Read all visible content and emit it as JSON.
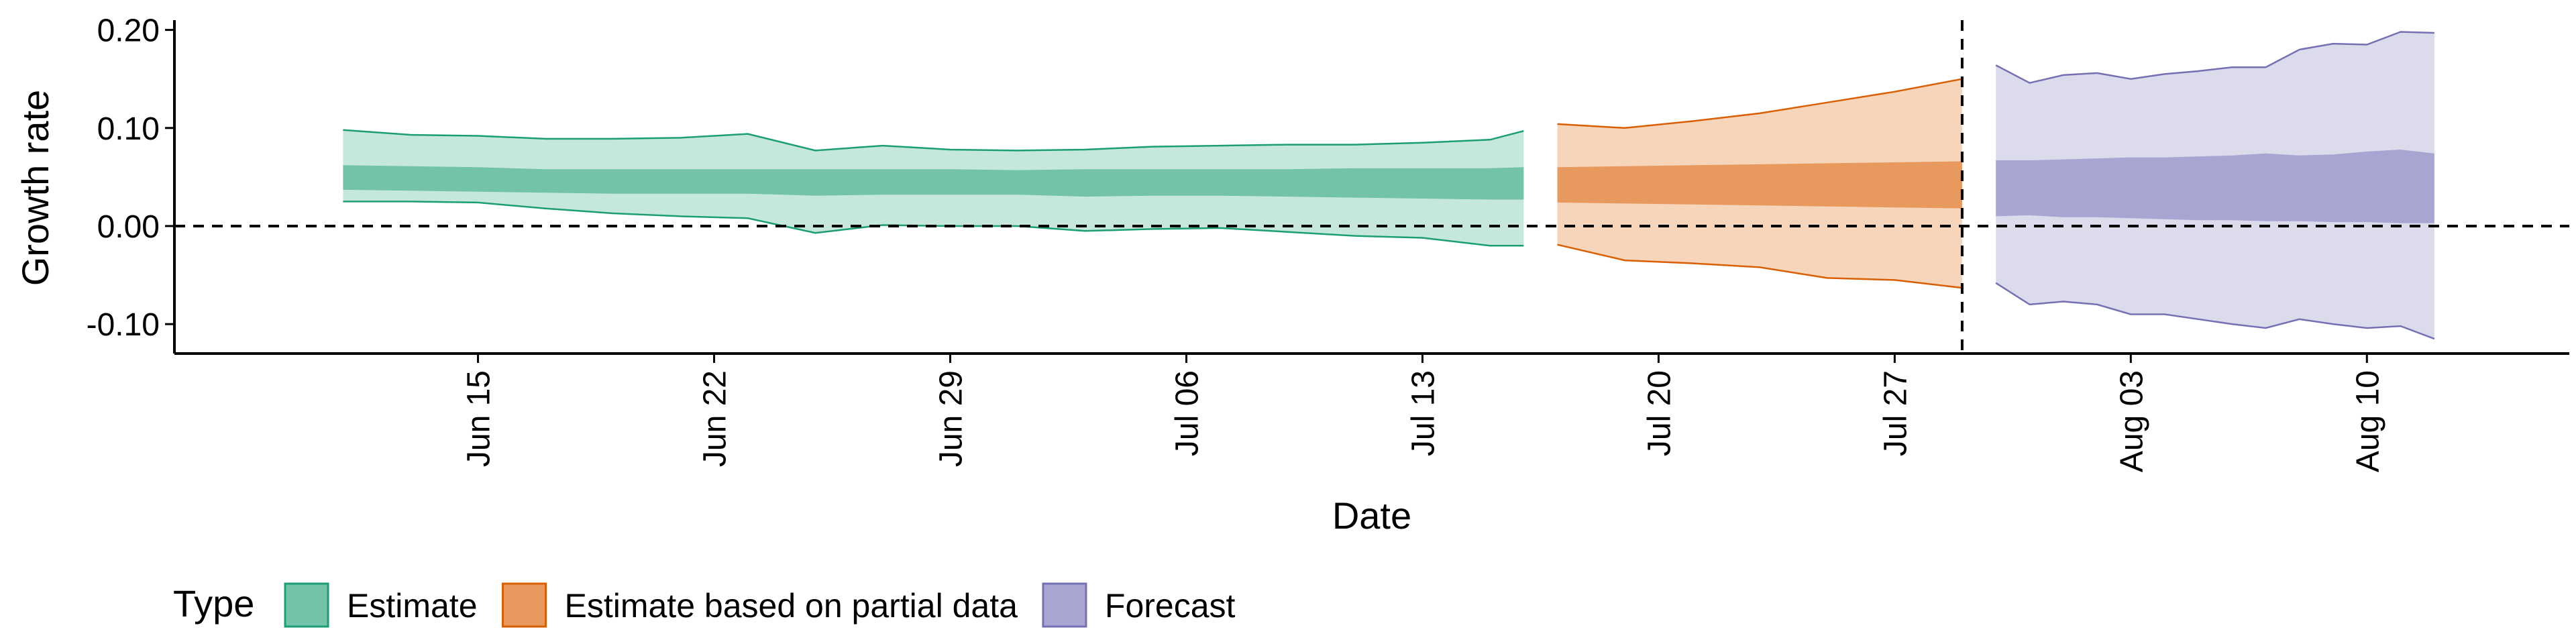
{
  "chart_data": {
    "type": "area",
    "xlabel": "Date",
    "ylabel": "Growth rate",
    "x_axis": {
      "type": "date",
      "range": [
        "2020-06-06",
        "2020-08-16"
      ],
      "ticks": [
        {
          "date": "2020-06-15",
          "label": "Jun 15"
        },
        {
          "date": "2020-06-22",
          "label": "Jun 22"
        },
        {
          "date": "2020-06-29",
          "label": "Jun 29"
        },
        {
          "date": "2020-07-06",
          "label": "Jul 06"
        },
        {
          "date": "2020-07-13",
          "label": "Jul 13"
        },
        {
          "date": "2020-07-20",
          "label": "Jul 20"
        },
        {
          "date": "2020-07-27",
          "label": "Jul 27"
        },
        {
          "date": "2020-08-03",
          "label": "Aug 03"
        },
        {
          "date": "2020-08-10",
          "label": "Aug 10"
        }
      ]
    },
    "y_axis": {
      "range": [
        -0.13,
        0.21
      ],
      "ticks": [
        {
          "value": 0.2,
          "label": "0.20"
        },
        {
          "value": 0.1,
          "label": "0.10"
        },
        {
          "value": 0.0,
          "label": "0.00"
        },
        {
          "value": -0.1,
          "label": "-0.10"
        }
      ]
    },
    "reference_lines": {
      "horizontal_y": 0.0,
      "vertical_date": "2020-07-29"
    },
    "legend": {
      "title": "Type",
      "position": "bottom",
      "entries": [
        {
          "label": "Estimate",
          "fill": "#72c3a8",
          "stroke": "#1b9e77"
        },
        {
          "label": "Estimate based on partial data",
          "fill": "#e89a5e",
          "stroke": "#d95f02"
        },
        {
          "label": "Forecast",
          "fill": "#a9a5d2",
          "stroke": "#7570b3"
        }
      ]
    },
    "series": [
      {
        "name": "Estimate",
        "outer_fill": "#c6e8dc",
        "inner_fill": "#72c3a8",
        "stroke": "#1b9e77",
        "points": [
          {
            "x": "2020-06-11",
            "lower_90": 0.025,
            "lower_50": 0.037,
            "upper_50": 0.062,
            "upper_90": 0.098
          },
          {
            "x": "2020-06-13",
            "lower_90": 0.025,
            "lower_50": 0.036,
            "upper_50": 0.061,
            "upper_90": 0.093
          },
          {
            "x": "2020-06-15",
            "lower_90": 0.024,
            "lower_50": 0.035,
            "upper_50": 0.06,
            "upper_90": 0.092
          },
          {
            "x": "2020-06-17",
            "lower_90": 0.018,
            "lower_50": 0.034,
            "upper_50": 0.058,
            "upper_90": 0.089
          },
          {
            "x": "2020-06-19",
            "lower_90": 0.013,
            "lower_50": 0.033,
            "upper_50": 0.058,
            "upper_90": 0.089
          },
          {
            "x": "2020-06-21",
            "lower_90": 0.01,
            "lower_50": 0.033,
            "upper_50": 0.058,
            "upper_90": 0.09
          },
          {
            "x": "2020-06-23",
            "lower_90": 0.008,
            "lower_50": 0.033,
            "upper_50": 0.058,
            "upper_90": 0.094
          },
          {
            "x": "2020-06-25",
            "lower_90": -0.007,
            "lower_50": 0.031,
            "upper_50": 0.058,
            "upper_90": 0.077
          },
          {
            "x": "2020-06-27",
            "lower_90": 0.001,
            "lower_50": 0.032,
            "upper_50": 0.058,
            "upper_90": 0.082
          },
          {
            "x": "2020-06-29",
            "lower_90": 0.0,
            "lower_50": 0.032,
            "upper_50": 0.058,
            "upper_90": 0.078
          },
          {
            "x": "2020-07-01",
            "lower_90": 0.0,
            "lower_50": 0.032,
            "upper_50": 0.057,
            "upper_90": 0.077
          },
          {
            "x": "2020-07-03",
            "lower_90": -0.005,
            "lower_50": 0.03,
            "upper_50": 0.058,
            "upper_90": 0.078
          },
          {
            "x": "2020-07-05",
            "lower_90": -0.003,
            "lower_50": 0.031,
            "upper_50": 0.058,
            "upper_90": 0.081
          },
          {
            "x": "2020-07-07",
            "lower_90": -0.002,
            "lower_50": 0.031,
            "upper_50": 0.058,
            "upper_90": 0.082
          },
          {
            "x": "2020-07-09",
            "lower_90": -0.006,
            "lower_50": 0.03,
            "upper_50": 0.058,
            "upper_90": 0.083
          },
          {
            "x": "2020-07-11",
            "lower_90": -0.01,
            "lower_50": 0.029,
            "upper_50": 0.059,
            "upper_90": 0.083
          },
          {
            "x": "2020-07-13",
            "lower_90": -0.012,
            "lower_50": 0.028,
            "upper_50": 0.059,
            "upper_90": 0.085
          },
          {
            "x": "2020-07-15",
            "lower_90": -0.02,
            "lower_50": 0.027,
            "upper_50": 0.059,
            "upper_90": 0.088
          },
          {
            "x": "2020-07-16",
            "lower_90": -0.02,
            "lower_50": 0.027,
            "upper_50": 0.06,
            "upper_90": 0.097
          }
        ]
      },
      {
        "name": "Estimate based on partial data",
        "outer_fill": "#f6d5bb",
        "inner_fill": "#e89a5e",
        "stroke": "#d95f02",
        "points": [
          {
            "x": "2020-07-17",
            "lower_90": -0.019,
            "lower_50": 0.024,
            "upper_50": 0.06,
            "upper_90": 0.104
          },
          {
            "x": "2020-07-19",
            "lower_90": -0.035,
            "lower_50": 0.023,
            "upper_50": 0.061,
            "upper_90": 0.1
          },
          {
            "x": "2020-07-21",
            "lower_90": -0.038,
            "lower_50": 0.022,
            "upper_50": 0.062,
            "upper_90": 0.107
          },
          {
            "x": "2020-07-23",
            "lower_90": -0.042,
            "lower_50": 0.021,
            "upper_50": 0.063,
            "upper_90": 0.115
          },
          {
            "x": "2020-07-25",
            "lower_90": -0.053,
            "lower_50": 0.02,
            "upper_50": 0.064,
            "upper_90": 0.126
          },
          {
            "x": "2020-07-27",
            "lower_90": -0.055,
            "lower_50": 0.019,
            "upper_50": 0.065,
            "upper_90": 0.137
          },
          {
            "x": "2020-07-29",
            "lower_90": -0.063,
            "lower_50": 0.018,
            "upper_50": 0.066,
            "upper_90": 0.15
          }
        ]
      },
      {
        "name": "Forecast",
        "outer_fill": "#dcdbec",
        "inner_fill": "#a9a5d2",
        "stroke": "#7570b3",
        "points": [
          {
            "x": "2020-07-30",
            "lower_90": -0.058,
            "lower_50": 0.01,
            "upper_50": 0.067,
            "upper_90": 0.164
          },
          {
            "x": "2020-07-31",
            "lower_90": -0.08,
            "lower_50": 0.011,
            "upper_50": 0.067,
            "upper_90": 0.146
          },
          {
            "x": "2020-08-01",
            "lower_90": -0.077,
            "lower_50": 0.009,
            "upper_50": 0.068,
            "upper_90": 0.154
          },
          {
            "x": "2020-08-02",
            "lower_90": -0.08,
            "lower_50": 0.009,
            "upper_50": 0.069,
            "upper_90": 0.156
          },
          {
            "x": "2020-08-03",
            "lower_90": -0.09,
            "lower_50": 0.008,
            "upper_50": 0.07,
            "upper_90": 0.15
          },
          {
            "x": "2020-08-04",
            "lower_90": -0.09,
            "lower_50": 0.007,
            "upper_50": 0.07,
            "upper_90": 0.155
          },
          {
            "x": "2020-08-05",
            "lower_90": -0.095,
            "lower_50": 0.006,
            "upper_50": 0.071,
            "upper_90": 0.158
          },
          {
            "x": "2020-08-06",
            "lower_90": -0.1,
            "lower_50": 0.006,
            "upper_50": 0.072,
            "upper_90": 0.162
          },
          {
            "x": "2020-08-07",
            "lower_90": -0.104,
            "lower_50": 0.005,
            "upper_50": 0.074,
            "upper_90": 0.162
          },
          {
            "x": "2020-08-08",
            "lower_90": -0.095,
            "lower_50": 0.005,
            "upper_50": 0.072,
            "upper_90": 0.18
          },
          {
            "x": "2020-08-09",
            "lower_90": -0.1,
            "lower_50": 0.004,
            "upper_50": 0.073,
            "upper_90": 0.186
          },
          {
            "x": "2020-08-10",
            "lower_90": -0.104,
            "lower_50": 0.004,
            "upper_50": 0.076,
            "upper_90": 0.185
          },
          {
            "x": "2020-08-11",
            "lower_90": -0.102,
            "lower_50": 0.003,
            "upper_50": 0.078,
            "upper_90": 0.198
          },
          {
            "x": "2020-08-12",
            "lower_90": -0.115,
            "lower_50": 0.003,
            "upper_50": 0.074,
            "upper_90": 0.197
          }
        ]
      }
    ]
  }
}
